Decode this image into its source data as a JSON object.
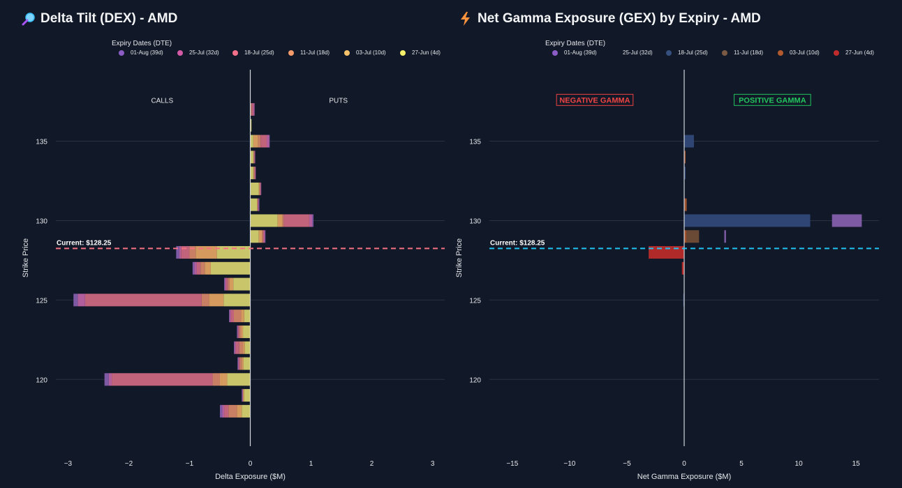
{
  "chart_data": [
    {
      "type": "bar",
      "orientation": "horizontal",
      "stacked": true,
      "title": "Delta Tilt (DEX) - AMD",
      "title_icon": "magnifier-icon",
      "xlabel": "Delta Exposure ($M)",
      "ylabel": "Strike Price",
      "xlim": [
        -3.2,
        3.2
      ],
      "ylim": [
        115.8,
        139.5
      ],
      "xticks": [
        -3,
        -2,
        -1,
        0,
        1,
        2,
        3
      ],
      "xtick_labels": [
        "−3",
        "−2",
        "−1",
        "0",
        "1",
        "2",
        "3"
      ],
      "yticks": [
        120,
        125,
        130,
        135
      ],
      "ytick_labels": [
        "120",
        "125",
        "130",
        "135"
      ],
      "legend_title": "Expiry Dates (DTE)",
      "current_price": 128.25,
      "current_label": "Current: $128.25",
      "current_line_color": "#f87183",
      "annotations": [
        {
          "text": "CALLS",
          "x": -1.45,
          "y": 137.6
        },
        {
          "text": "PUTS",
          "x": 1.45,
          "y": 137.6
        }
      ],
      "strikes": [
        118,
        119,
        120,
        121,
        122,
        123,
        124,
        125,
        126,
        127,
        128,
        129,
        130,
        131,
        132,
        133,
        134,
        135,
        136,
        137
      ],
      "series": [
        {
          "name": "27-Jun (4d)",
          "color": "#c9c56a",
          "calls": [
            -0.14,
            -0.1,
            -0.38,
            -0.11,
            -0.09,
            -0.12,
            -0.1,
            -0.44,
            -0.28,
            -0.65,
            -0.55,
            0,
            0,
            0,
            0,
            0,
            0,
            0,
            0,
            0
          ],
          "puts": [
            0,
            0,
            0,
            0,
            0,
            0,
            0,
            0,
            0,
            0,
            0,
            0.14,
            0.45,
            0.11,
            0.14,
            0.05,
            0.05,
            0.05,
            0.02,
            0.01
          ]
        },
        {
          "name": "03-Jul (10d)",
          "color": "#d49a5e",
          "calls": [
            -0.08,
            -0.02,
            -0.12,
            -0.03,
            -0.03,
            -0.03,
            -0.05,
            -0.24,
            -0.06,
            -0.1,
            -0.35,
            0,
            0,
            0,
            0,
            0,
            0,
            0,
            0,
            0
          ],
          "puts": [
            0,
            0,
            0,
            0,
            0,
            0,
            0,
            0,
            0,
            0,
            0,
            0.05,
            0.08,
            0.01,
            0.01,
            0.01,
            0.01,
            0.08,
            0.0,
            0.0
          ]
        },
        {
          "name": "11-Jul (18d)",
          "color": "#c87f64",
          "calls": [
            -0.14,
            0,
            -0.12,
            -0.03,
            -0.06,
            -0.03,
            -0.12,
            -0.12,
            -0.03,
            -0.07,
            -0.1,
            0,
            0,
            0,
            0,
            0,
            0,
            0,
            0,
            0
          ],
          "puts": [
            0,
            0,
            0,
            0,
            0,
            0,
            0,
            0,
            0,
            0,
            0,
            0.02,
            0.02,
            0,
            0.01,
            0.01,
            0,
            0.04,
            0,
            0.01
          ]
        },
        {
          "name": "18-Jul (25d)",
          "color": "#c1637b",
          "calls": [
            -0.07,
            0,
            -1.66,
            -0.02,
            -0.06,
            -0.02,
            -0.05,
            -1.92,
            -0.03,
            -0.06,
            -0.14,
            0,
            0,
            0,
            0,
            0,
            0,
            0,
            0,
            0
          ],
          "puts": [
            0,
            0,
            0,
            0,
            0,
            0,
            0,
            0,
            0,
            0,
            0,
            0.02,
            0.42,
            0.01,
            0.01,
            0.01,
            0.01,
            0.1,
            0,
            0.03
          ]
        },
        {
          "name": "25-Jul (32d)",
          "color": "#b25e9c",
          "calls": [
            -0.03,
            -0.01,
            -0.05,
            -0.01,
            -0.02,
            -0.01,
            -0.02,
            -0.12,
            -0.02,
            -0.04,
            -0.03,
            0,
            0,
            0,
            0,
            0,
            0,
            0,
            0,
            0
          ],
          "puts": [
            0,
            0,
            0,
            0,
            0,
            0,
            0,
            0,
            0,
            0,
            0,
            0.01,
            0.05,
            0.01,
            0.01,
            0.01,
            0.01,
            0.04,
            0,
            0.02
          ]
        },
        {
          "name": "01-Aug (39d)",
          "color": "#7e5aa5",
          "calls": [
            -0.04,
            -0.01,
            -0.07,
            -0.01,
            -0.01,
            -0.01,
            -0.01,
            -0.07,
            -0.01,
            -0.03,
            -0.05,
            0,
            0,
            0,
            0,
            0,
            0,
            0,
            0,
            0
          ],
          "puts": [
            0,
            0,
            0,
            0,
            0,
            0,
            0,
            0,
            0,
            0,
            0,
            0.01,
            0.02,
            0.01,
            0,
            0,
            0,
            0.01,
            0,
            0.0
          ]
        }
      ]
    },
    {
      "type": "bar",
      "orientation": "horizontal",
      "stacked": false,
      "title": "Net Gamma Exposure (GEX) by Expiry - AMD",
      "title_icon": "lightning-icon",
      "xlabel": "Net Gamma Exposure ($M)",
      "ylabel": "Strike Price",
      "xlim": [
        -17,
        17
      ],
      "ylim": [
        115.8,
        139.5
      ],
      "xticks": [
        -15,
        -10,
        -5,
        0,
        5,
        10,
        15
      ],
      "xtick_labels": [
        "−15",
        "−10",
        "−5",
        "0",
        "5",
        "10",
        "15"
      ],
      "yticks": [
        120,
        125,
        130,
        135
      ],
      "ytick_labels": [
        "120",
        "125",
        "130",
        "135"
      ],
      "legend_title": "Expiry Dates (DTE)",
      "current_price": 128.25,
      "current_label": "Current: $128.25",
      "current_line_color": "#22c3f2",
      "annotations": [
        {
          "text": "NEGATIVE GAMMA",
          "x": -7.8,
          "y": 137.6,
          "color": "#ef4444"
        },
        {
          "text": "POSITIVE GAMMA",
          "x": 7.7,
          "y": 137.6,
          "color": "#22c55e"
        }
      ],
      "series": [
        {
          "name": "01-Aug (39d)",
          "color": "#7e5aa5",
          "bars": [
            {
              "strike": 130,
              "start": 12.9,
              "value": 2.6
            },
            {
              "strike": 129,
              "start": 3.5,
              "value": 0.15
            }
          ]
        },
        {
          "name": "25-Jul (32d)",
          "color": "#b25e9c",
          "bars": []
        },
        {
          "name": "18-Jul (25d)",
          "color": "#2f4674",
          "bars": [
            {
              "strike": 130,
              "start": 0,
              "value": 11.0
            },
            {
              "strike": 135,
              "start": 0,
              "value": 0.85
            },
            {
              "strike": 133,
              "start": 0,
              "value": 0.12
            },
            {
              "strike": 125,
              "start": 0,
              "value": -0.08
            }
          ]
        },
        {
          "name": "11-Jul (18d)",
          "color": "#6a4a35",
          "bars": [
            {
              "strike": 129,
              "start": 0.2,
              "value": 1.1
            }
          ]
        },
        {
          "name": "03-Jul (10d)",
          "color": "#a0522d",
          "bars": [
            {
              "strike": 134,
              "start": 0,
              "value": 0.12
            },
            {
              "strike": 131,
              "start": 0,
              "value": 0.22
            },
            {
              "strike": 129,
              "start": 0,
              "value": 0.2
            }
          ]
        },
        {
          "name": "27-Jun (4d)",
          "color": "#b02a2a",
          "bars": [
            {
              "strike": 128,
              "start": 0,
              "value": -3.1
            },
            {
              "strike": 127,
              "start": 0,
              "value": -0.2
            }
          ]
        }
      ]
    }
  ],
  "legend_colors": {
    "01-Aug (39d)": "#8b5cc6",
    "25-Jul (32d)": "#d45aa8",
    "18-Jul (25d)": "#f2708a",
    "11-Jul (18d)": "#f59a6a",
    "03-Jul (10d)": "#f5c16a",
    "27-Jun (4d)": "#f5f06a"
  },
  "gex_legend_colors": {
    "01-Aug (39d)": "#8b5cc6",
    "25-Jul (32d)": "#111827",
    "18-Jul (25d)": "#35507f",
    "11-Jul (18d)": "#7a5a45",
    "03-Jul (10d)": "#b25a2d",
    "27-Jun (4d)": "#c02c2c"
  }
}
